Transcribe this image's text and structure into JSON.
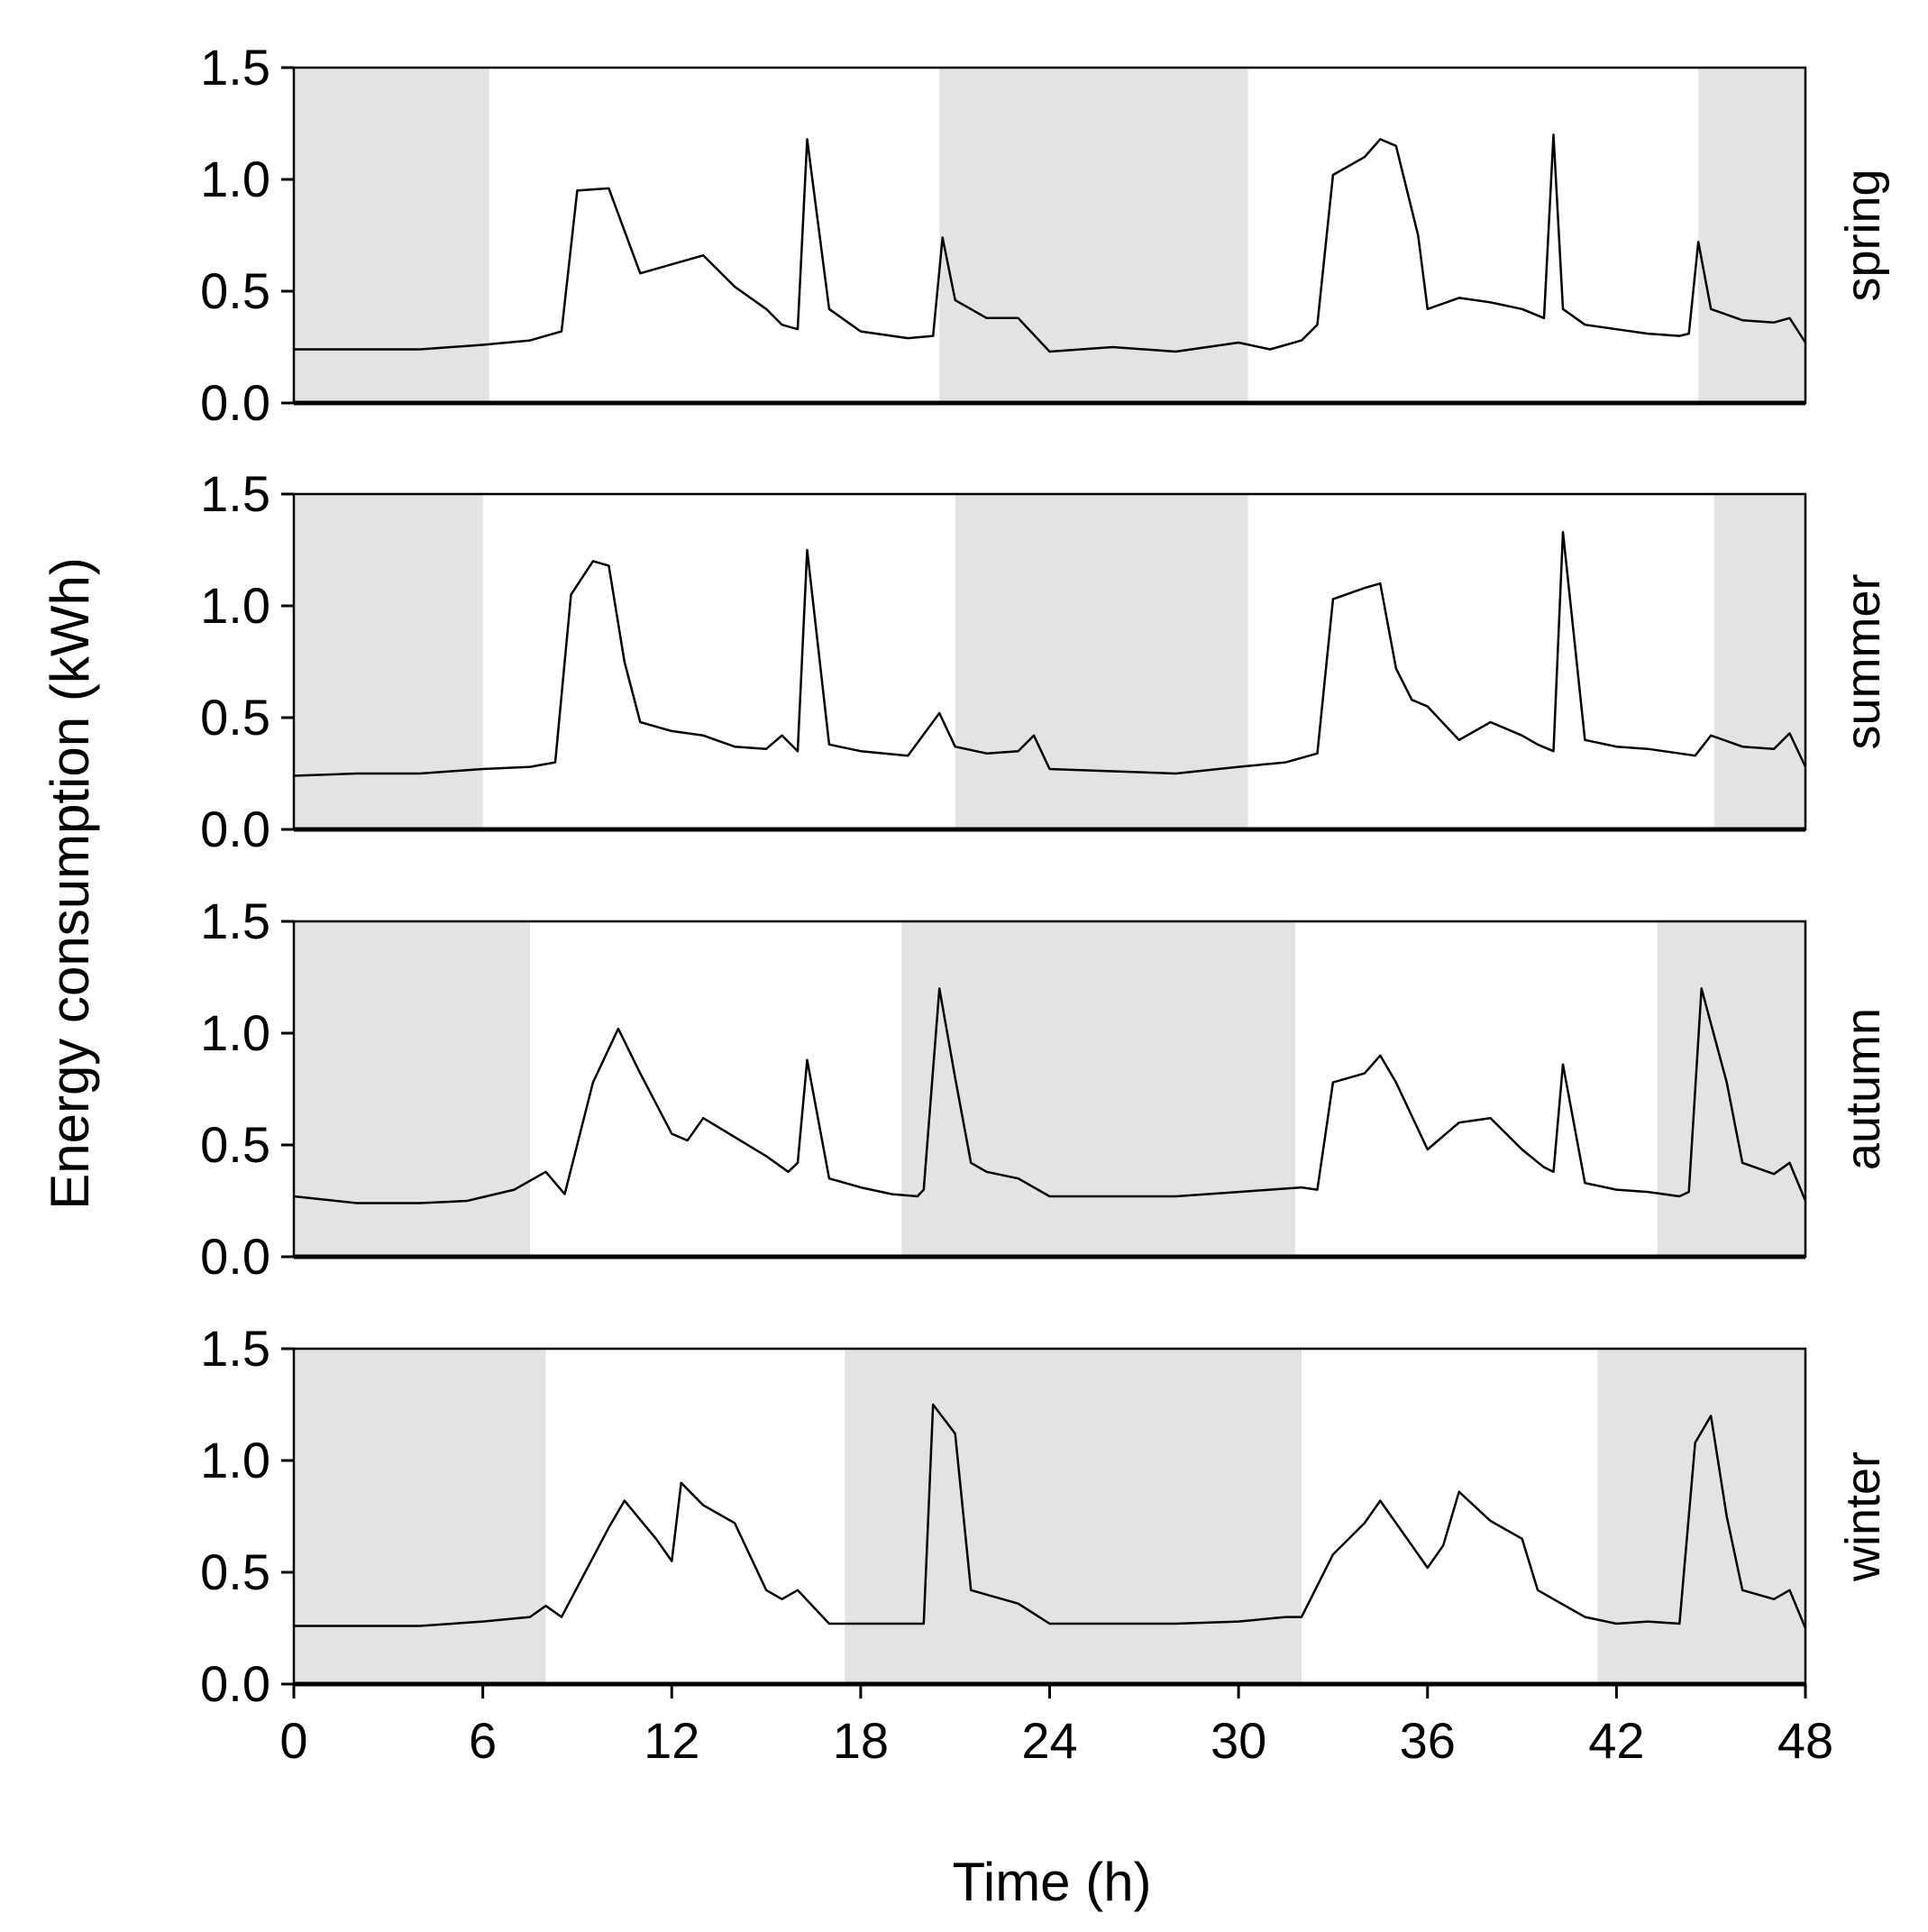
{
  "chart_data": {
    "type": "line",
    "layout": "faceted",
    "ylabel": "Energy consumption (kWh)",
    "xlabel": "Time (h)",
    "xlim": [
      0,
      48
    ],
    "ylim": [
      0,
      1.5
    ],
    "x_ticks": [
      0,
      6,
      12,
      18,
      24,
      30,
      36,
      42,
      48
    ],
    "y_ticks": [
      "0.0",
      "0.5",
      "1.0",
      "1.5"
    ],
    "shading": "grey bands mark night-time hours",
    "colors": {
      "line": "#000000",
      "night_band": "#e3e3e3",
      "frame": "#000000"
    },
    "panels": [
      {
        "name": "spring",
        "night_bands": [
          [
            0,
            6.2
          ],
          [
            20.5,
            30.3
          ],
          [
            44.6,
            48
          ]
        ],
        "x": [
          0,
          2,
          4,
          6,
          7.5,
          8.5,
          9,
          10,
          11,
          12,
          13,
          14,
          15,
          15.5,
          16,
          16.3,
          17,
          18,
          19.5,
          20.3,
          20.6,
          21,
          22,
          23,
          24,
          26,
          28,
          30,
          31,
          32,
          32.5,
          33,
          34,
          34.5,
          35,
          35.7,
          36,
          37,
          38,
          39,
          39.7,
          40,
          40.3,
          41,
          42,
          43,
          44,
          44.3,
          44.6,
          45,
          46,
          47,
          47.5,
          48
        ],
        "y": [
          0.24,
          0.24,
          0.24,
          0.26,
          0.28,
          0.32,
          0.95,
          0.96,
          0.58,
          0.62,
          0.66,
          0.52,
          0.42,
          0.35,
          0.33,
          1.18,
          0.42,
          0.32,
          0.29,
          0.3,
          0.74,
          0.46,
          0.38,
          0.38,
          0.23,
          0.25,
          0.23,
          0.27,
          0.24,
          0.28,
          0.35,
          1.02,
          1.1,
          1.18,
          1.15,
          0.75,
          0.42,
          0.47,
          0.45,
          0.42,
          0.38,
          1.2,
          0.42,
          0.35,
          0.33,
          0.31,
          0.3,
          0.31,
          0.72,
          0.42,
          0.37,
          0.36,
          0.38,
          0.27
        ]
      },
      {
        "name": "summer",
        "night_bands": [
          [
            0,
            6.0
          ],
          [
            21.0,
            30.3
          ],
          [
            45.1,
            48
          ]
        ],
        "x": [
          0,
          2,
          4,
          6,
          7.5,
          8.3,
          8.8,
          9.5,
          10,
          10.5,
          11,
          12,
          13,
          14,
          15,
          15.5,
          16,
          16.3,
          17,
          18,
          19.5,
          20.5,
          21,
          22,
          23,
          23.5,
          24,
          26,
          28,
          30,
          31.5,
          32.5,
          33,
          34,
          34.5,
          35,
          35.5,
          36,
          37,
          38,
          39,
          39.5,
          40,
          40.3,
          41,
          42,
          43,
          44,
          44.5,
          45,
          46,
          47,
          47.5,
          48
        ],
        "y": [
          0.24,
          0.25,
          0.25,
          0.27,
          0.28,
          0.3,
          1.05,
          1.2,
          1.18,
          0.75,
          0.48,
          0.44,
          0.42,
          0.37,
          0.36,
          0.42,
          0.35,
          1.25,
          0.38,
          0.35,
          0.33,
          0.52,
          0.37,
          0.34,
          0.35,
          0.42,
          0.27,
          0.26,
          0.25,
          0.28,
          0.3,
          0.34,
          1.03,
          1.08,
          1.1,
          0.72,
          0.58,
          0.55,
          0.4,
          0.48,
          0.42,
          0.38,
          0.35,
          1.33,
          0.4,
          0.37,
          0.36,
          0.34,
          0.33,
          0.42,
          0.37,
          0.36,
          0.43,
          0.28
        ]
      },
      {
        "name": "autumn",
        "night_bands": [
          [
            0,
            7.5
          ],
          [
            19.3,
            31.8
          ],
          [
            43.3,
            48
          ]
        ],
        "x": [
          0,
          2,
          4,
          5.5,
          7,
          8,
          8.6,
          9.5,
          10.3,
          11,
          12,
          12.5,
          13,
          15,
          15.7,
          16,
          16.3,
          17,
          18,
          19,
          19.8,
          20,
          20.5,
          21,
          21.5,
          22,
          23,
          24,
          26,
          28,
          30,
          32,
          32.5,
          33,
          34,
          34.5,
          35,
          36,
          37,
          38,
          39,
          39.7,
          40,
          40.3,
          41,
          42,
          43,
          44,
          44.3,
          44.7,
          45.5,
          46,
          47,
          47.5,
          48
        ],
        "y": [
          0.27,
          0.24,
          0.24,
          0.25,
          0.3,
          0.38,
          0.28,
          0.78,
          1.02,
          0.82,
          0.55,
          0.52,
          0.62,
          0.45,
          0.38,
          0.42,
          0.88,
          0.35,
          0.31,
          0.28,
          0.27,
          0.3,
          1.2,
          0.8,
          0.42,
          0.38,
          0.35,
          0.27,
          0.27,
          0.27,
          0.29,
          0.31,
          0.3,
          0.78,
          0.82,
          0.9,
          0.78,
          0.48,
          0.6,
          0.62,
          0.48,
          0.4,
          0.38,
          0.86,
          0.33,
          0.3,
          0.29,
          0.27,
          0.29,
          1.2,
          0.78,
          0.42,
          0.37,
          0.42,
          0.25
        ]
      },
      {
        "name": "winter",
        "night_bands": [
          [
            0,
            8.0
          ],
          [
            17.5,
            32.0
          ],
          [
            41.4,
            48
          ]
        ],
        "x": [
          0,
          2,
          4,
          6,
          7.5,
          8,
          8.5,
          10,
          10.5,
          11.5,
          12,
          12.3,
          13,
          14,
          15,
          15.5,
          16,
          17,
          18,
          19,
          20,
          20.3,
          21,
          21.5,
          22,
          23,
          24,
          26,
          28,
          30,
          31.5,
          32,
          33,
          34,
          34.5,
          35,
          36,
          36.5,
          37,
          38,
          39,
          39.5,
          40,
          41,
          42,
          43,
          44,
          44.5,
          45,
          45.5,
          46,
          47,
          47.5,
          48
        ],
        "y": [
          0.26,
          0.26,
          0.26,
          0.28,
          0.3,
          0.35,
          0.3,
          0.7,
          0.82,
          0.65,
          0.55,
          0.9,
          0.8,
          0.72,
          0.42,
          0.38,
          0.42,
          0.27,
          0.27,
          0.27,
          0.27,
          1.25,
          1.12,
          0.42,
          0.4,
          0.36,
          0.27,
          0.27,
          0.27,
          0.28,
          0.3,
          0.3,
          0.58,
          0.72,
          0.82,
          0.72,
          0.52,
          0.62,
          0.86,
          0.73,
          0.65,
          0.42,
          0.38,
          0.3,
          0.27,
          0.28,
          0.27,
          1.08,
          1.2,
          0.75,
          0.42,
          0.38,
          0.42,
          0.25
        ]
      }
    ]
  }
}
